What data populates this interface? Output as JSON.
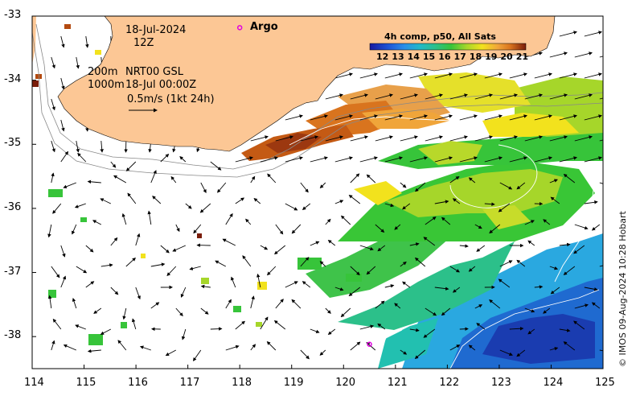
{
  "map": {
    "region": "Great Australian Bight / SW Australia",
    "land_color": "#fcc795"
  },
  "annotations": {
    "date": "18-Jul-2024",
    "hour": "12Z",
    "depth1": "200m",
    "depth2": "1000m",
    "product": "NRT00 GSL",
    "product_time": "18-Jul 00:00Z",
    "vector_scale": "0.5m/s (1kt 24h)",
    "argo_label": "Argo",
    "credit": "© IMOS 09-Aug-2024 10:28 Hobart"
  },
  "colorbar": {
    "title": "4h comp, p50, All Sats",
    "ticks": [
      "12",
      "13",
      "14",
      "15",
      "16",
      "17",
      "18",
      "19",
      "20",
      "21"
    ],
    "colors": [
      "#1a1aa0",
      "#1f55d6",
      "#2a8ee8",
      "#22b8c8",
      "#2cc08a",
      "#37c43a",
      "#a6d62a",
      "#f2e21d",
      "#f0a53a",
      "#d9741e",
      "#b34a10",
      "#7a1d0a"
    ]
  },
  "axes": {
    "x_ticks": [
      "114",
      "115",
      "116",
      "117",
      "118",
      "119",
      "120",
      "121",
      "122",
      "123",
      "124",
      "125"
    ],
    "y_ticks": [
      "-33",
      "-34",
      "-35",
      "-36",
      "-37",
      "-38"
    ],
    "lon_range": [
      114,
      125
    ],
    "lat_range": [
      -38.5,
      -33
    ]
  },
  "argo_floats": [
    {
      "lon": 118.0,
      "lat": -33.18
    },
    {
      "lon": 120.5,
      "lat": -38.12
    }
  ]
}
